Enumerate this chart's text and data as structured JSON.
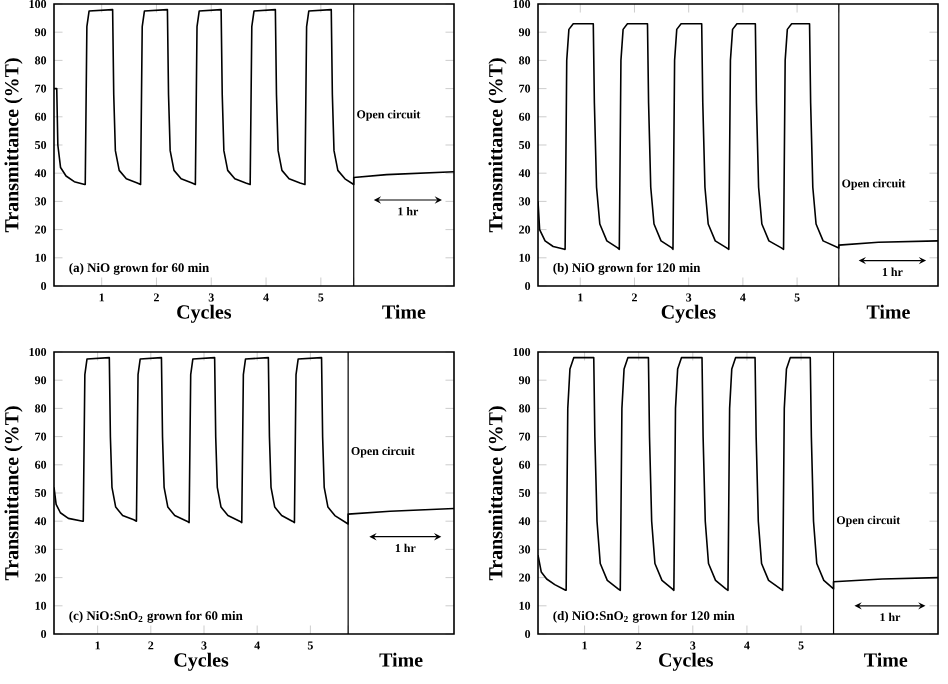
{
  "chart_data": [
    {
      "type": "line",
      "title": "(a) NiO grown for 60 min",
      "xlabel": "Cycles",
      "ylabel": "Transmittance (%T)",
      "xlim": [
        0.13,
        7.43
      ],
      "ylim": [
        0,
        100
      ],
      "xticks": [
        1,
        2,
        3,
        4,
        5,
        {
          "value": 5.6,
          "label": null
        }
      ],
      "yticks": [
        0,
        10,
        20,
        30,
        40,
        50,
        60,
        70,
        80,
        90,
        100
      ],
      "annotations": [
        "Time",
        "1 hr"
      ],
      "ref_lines": [
        {
          "axis": "x",
          "value": 5.6,
          "label": "Open circuit"
        }
      ],
      "series": [
        {
          "color": "#000000",
          "x": [
            0.13,
            0.18,
            0.2,
            0.25,
            0.35,
            0.5,
            0.69,
            0.7,
            0.73,
            0.77,
            1.2,
            1.22,
            1.25,
            1.32,
            1.45,
            1.65,
            1.71,
            1.74,
            1.78,
            2.2,
            2.22,
            2.25,
            2.32,
            2.45,
            2.65,
            2.71,
            2.74,
            2.78,
            3.18,
            3.2,
            3.23,
            3.3,
            3.43,
            3.63,
            3.71,
            3.74,
            3.78,
            4.17,
            4.19,
            4.22,
            4.29,
            4.42,
            4.62,
            4.71,
            4.74,
            4.78,
            5.19,
            5.21,
            5.24,
            5.31,
            5.44,
            5.6,
            5.6,
            6.2,
            7.43
          ],
          "values": [
            70,
            70,
            50,
            42,
            39,
            37,
            36,
            36,
            92,
            97.5,
            98,
            68,
            48,
            41,
            38,
            36.5,
            36,
            92,
            97.5,
            98,
            68,
            48,
            41,
            38,
            36.5,
            36,
            92,
            97.5,
            98,
            68,
            48,
            41,
            38,
            36.5,
            36,
            92,
            97.5,
            98,
            68,
            48,
            41,
            38,
            36.5,
            36,
            92,
            97.5,
            98,
            68,
            48,
            41,
            38,
            36,
            38.5,
            39.5,
            40.5
          ]
        }
      ]
    },
    {
      "type": "line",
      "title": "(b) NiO grown for 120 min",
      "xlabel": "Cycles",
      "ylabel": "Transmittance (%T)",
      "xlim": [
        0.22,
        7.6
      ],
      "ylim": [
        0,
        100
      ],
      "xticks": [
        1,
        2,
        3,
        4,
        5,
        {
          "value": 5.77,
          "label": null
        }
      ],
      "yticks": [
        0,
        10,
        20,
        30,
        40,
        50,
        60,
        70,
        80,
        90,
        100
      ],
      "annotations": [
        "Time",
        "1 hr"
      ],
      "ref_lines": [
        {
          "axis": "x",
          "value": 5.77,
          "label": "Open circuit"
        }
      ],
      "series": [
        {
          "color": "#000000",
          "x": [
            0.22,
            0.25,
            0.35,
            0.5,
            0.71,
            0.72,
            0.75,
            0.79,
            0.87,
            1.24,
            1.26,
            1.3,
            1.36,
            1.49,
            1.69,
            1.72,
            1.75,
            1.79,
            1.87,
            2.24,
            2.26,
            2.3,
            2.36,
            2.49,
            2.69,
            2.71,
            2.74,
            2.78,
            2.86,
            3.24,
            3.26,
            3.3,
            3.36,
            3.49,
            3.7,
            3.74,
            3.77,
            3.81,
            3.89,
            4.23,
            4.25,
            4.29,
            4.35,
            4.48,
            4.71,
            4.75,
            4.78,
            4.82,
            4.9,
            5.23,
            5.25,
            5.29,
            5.35,
            5.48,
            5.77,
            5.77,
            6.5,
            7.6
          ],
          "values": [
            30,
            20,
            16,
            14,
            13,
            13,
            80,
            91,
            93,
            93,
            65,
            35,
            22,
            16,
            13.5,
            13,
            80,
            91,
            93,
            93,
            65,
            35,
            22,
            16,
            13.5,
            13,
            80,
            91,
            93,
            93,
            65,
            35,
            22,
            16,
            13.5,
            13,
            80,
            91,
            93,
            93,
            65,
            35,
            22,
            16,
            13.5,
            13,
            80,
            91,
            93,
            93,
            65,
            35,
            22,
            16,
            13.5,
            14.5,
            15.5,
            16
          ]
        }
      ]
    },
    {
      "type": "line",
      "title": "(c) NiO:SnO$_{2}$ grown for 60 min",
      "xlabel": "Cycles",
      "ylabel": "Transmittance (%T)",
      "xlim": [
        0.18,
        7.7
      ],
      "ylim": [
        0,
        100
      ],
      "xticks": [
        1,
        2,
        3,
        4,
        5,
        {
          "value": 5.71,
          "label": null
        }
      ],
      "yticks": [
        0,
        10,
        20,
        30,
        40,
        50,
        60,
        70,
        80,
        90,
        100
      ],
      "annotations": [
        "Time",
        "1 hr"
      ],
      "ref_lines": [
        {
          "axis": "x",
          "value": 5.71,
          "label": "Open circuit"
        }
      ],
      "series": [
        {
          "color": "#000000",
          "x": [
            0.18,
            0.22,
            0.3,
            0.45,
            0.72,
            0.73,
            0.76,
            0.8,
            1.22,
            1.24,
            1.27,
            1.34,
            1.47,
            1.68,
            1.73,
            1.76,
            1.8,
            2.2,
            2.22,
            2.25,
            2.32,
            2.45,
            2.68,
            2.72,
            2.75,
            2.79,
            3.2,
            3.22,
            3.25,
            3.32,
            3.45,
            3.67,
            3.71,
            3.74,
            3.78,
            4.21,
            4.23,
            4.26,
            4.33,
            4.46,
            4.66,
            4.7,
            4.73,
            4.77,
            5.21,
            5.23,
            5.26,
            5.33,
            5.46,
            5.71,
            5.71,
            6.5,
            7.7
          ],
          "values": [
            52,
            46,
            43,
            41,
            40,
            40,
            92,
            97.5,
            98,
            70,
            52,
            45,
            42,
            40.5,
            40,
            92,
            97.5,
            98,
            70,
            52,
            45,
            42,
            40,
            39.5,
            92,
            97.5,
            98,
            70,
            52,
            45,
            42,
            40,
            39.5,
            92,
            97.5,
            98,
            70,
            52,
            45,
            42,
            40,
            39.5,
            92,
            97.5,
            98,
            70,
            52,
            45,
            42,
            39,
            42.5,
            43.5,
            44.5
          ]
        }
      ]
    },
    {
      "type": "line",
      "title": "(d) NiO:SnO$_{2}$ grown for 120 min",
      "xlabel": "Cycles",
      "ylabel": "Transmittance (%T)",
      "xlim": [
        0.14,
        7.53
      ],
      "ylim": [
        0,
        100
      ],
      "xticks": [
        1,
        2,
        3,
        4,
        5,
        {
          "value": 5.6,
          "label": null
        }
      ],
      "yticks": [
        0,
        10,
        20,
        30,
        40,
        50,
        60,
        70,
        80,
        90,
        100
      ],
      "annotations": [
        "Time",
        "1 hr"
      ],
      "ref_lines": [
        {
          "axis": "x",
          "value": 5.6,
          "label": "Open circuit"
        }
      ],
      "series": [
        {
          "color": "#000000",
          "x": [
            0.14,
            0.2,
            0.3,
            0.45,
            0.65,
            0.66,
            0.69,
            0.73,
            0.8,
            1.17,
            1.19,
            1.23,
            1.29,
            1.42,
            1.62,
            1.66,
            1.69,
            1.73,
            1.8,
            2.18,
            2.2,
            2.24,
            2.3,
            2.43,
            2.62,
            2.65,
            2.68,
            2.72,
            2.79,
            3.17,
            3.19,
            3.23,
            3.29,
            3.42,
            3.61,
            3.65,
            3.68,
            3.72,
            3.79,
            4.15,
            4.17,
            4.21,
            4.27,
            4.4,
            4.62,
            4.66,
            4.69,
            4.73,
            4.8,
            5.17,
            5.19,
            5.23,
            5.29,
            5.42,
            5.6,
            5.6,
            6.5,
            7.53
          ],
          "values": [
            28,
            22,
            19.5,
            17.5,
            15.5,
            15.5,
            80,
            94,
            98,
            98,
            70,
            40,
            25,
            19,
            16,
            15.5,
            80,
            94,
            98,
            98,
            70,
            40,
            25,
            19,
            16,
            15.5,
            80,
            94,
            98,
            98,
            70,
            40,
            25,
            19,
            16,
            15.5,
            80,
            94,
            98,
            98,
            70,
            40,
            25,
            19,
            16,
            15.5,
            80,
            94,
            98,
            98,
            70,
            40,
            25,
            19,
            16,
            18.5,
            19.5,
            20
          ]
        }
      ]
    }
  ]
}
